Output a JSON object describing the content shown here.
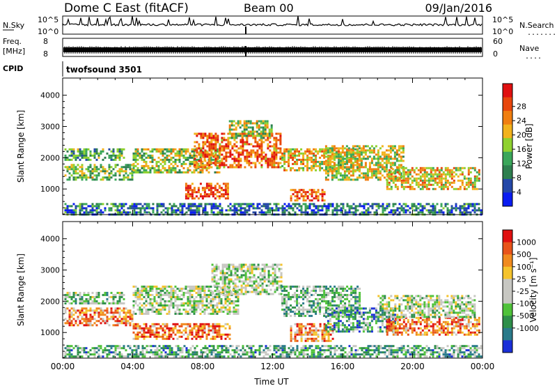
{
  "header": {
    "station": "Dome C East (fitACF)",
    "beam": "Beam 00",
    "date": "09/Jan/2016"
  },
  "status_panels": {
    "nsky_label": "N.Sky",
    "nsky_ticks": [
      "10^5",
      "10^0"
    ],
    "nsearch_label": "N.Search",
    "nsearch_dots": ".......",
    "freq_label_1": "Freq.",
    "freq_label_2": "[MHz]",
    "freq_ticks": [
      "8",
      "8"
    ],
    "nave_ticks": [
      "60",
      "0"
    ],
    "nave_label": "Nave",
    "nave_dots": "....",
    "cpid_label": "CPID",
    "cpid_value": "twofsound 3501"
  },
  "chart_data": [
    {
      "type": "heatmap",
      "name": "power",
      "ylabel": "Slant Range [km]",
      "yticks": [
        "1000",
        "2000",
        "3000",
        "4000"
      ],
      "ylim": [
        180,
        4550
      ],
      "xlim": [
        0,
        24
      ],
      "colorbar_label": "Power [dB]",
      "colorbar_ticks": [
        "4",
        "8",
        "12",
        "16",
        "20",
        "24",
        "28"
      ],
      "colorbar_colors": [
        "#0a1cf2",
        "#2448a8",
        "#2e7f4f",
        "#3aa65a",
        "#8fd12f",
        "#f2b21c",
        "#f07e10",
        "#e8460c",
        "#e01010"
      ],
      "echo_bands": [
        {
          "t0": 0.1,
          "t1": 4.0,
          "r0": 1300,
          "r1": 1800,
          "level": 0.45
        },
        {
          "t0": 0.1,
          "t1": 3.5,
          "r0": 1900,
          "r1": 2300,
          "level": 0.35
        },
        {
          "t0": 4.0,
          "t1": 9.0,
          "r0": 1500,
          "r1": 2300,
          "level": 0.5
        },
        {
          "t0": 7.0,
          "t1": 9.5,
          "r0": 700,
          "r1": 1200,
          "level": 0.85
        },
        {
          "t0": 7.5,
          "t1": 12.5,
          "r0": 1700,
          "r1": 2800,
          "level": 0.75
        },
        {
          "t0": 9.5,
          "t1": 12.0,
          "r0": 2600,
          "r1": 3200,
          "level": 0.5
        },
        {
          "t0": 13.0,
          "t1": 15.0,
          "r0": 600,
          "r1": 1000,
          "level": 0.8
        },
        {
          "t0": 12.5,
          "t1": 17.0,
          "r0": 1600,
          "r1": 2300,
          "level": 0.6
        },
        {
          "t0": 15.0,
          "t1": 19.5,
          "r0": 1300,
          "r1": 2400,
          "level": 0.55
        },
        {
          "t0": 18.5,
          "t1": 23.8,
          "r0": 1000,
          "r1": 1700,
          "level": 0.6
        },
        {
          "t0": 0.1,
          "t1": 23.9,
          "r0": 200,
          "r1": 550,
          "level": 0.25
        }
      ]
    },
    {
      "type": "heatmap",
      "name": "velocity",
      "ylabel": "Slant Range [km]",
      "yticks": [
        "1000",
        "2000",
        "3000",
        "4000"
      ],
      "ylim": [
        180,
        4550
      ],
      "xlabel": "Time UT",
      "xticks": [
        "00:00",
        "04:00",
        "08:00",
        "12:00",
        "16:00",
        "20:00",
        "00:00"
      ],
      "xlim": [
        0,
        24
      ],
      "colorbar_label": "Velocity [m s⁻¹]",
      "colorbar_ticks": [
        "1000",
        "500",
        "100",
        "25",
        "-25",
        "-100",
        "-500",
        "-1000"
      ],
      "colorbar_colors": [
        "#1a2fd8",
        "#2a7a8a",
        "#2e8f4a",
        "#4fc23a",
        "#c7c7c2",
        "#c7c7c2",
        "#f5c32c",
        "#f08a1e",
        "#e8541a",
        "#e01010"
      ],
      "echo_bands": [
        {
          "t0": 0.1,
          "t1": 4.0,
          "r0": 1200,
          "r1": 1800,
          "level": 0.75
        },
        {
          "t0": 0.1,
          "t1": 3.5,
          "r0": 1900,
          "r1": 2300,
          "level": 0.4
        },
        {
          "t0": 4.0,
          "t1": 9.5,
          "r0": 800,
          "r1": 1300,
          "level": 0.8
        },
        {
          "t0": 4.0,
          "t1": 10.0,
          "r0": 1600,
          "r1": 2500,
          "level": 0.45
        },
        {
          "t0": 8.5,
          "t1": 12.5,
          "r0": 2200,
          "r1": 3200,
          "level": 0.45
        },
        {
          "t0": 12.5,
          "t1": 17.0,
          "r0": 1500,
          "r1": 2500,
          "level": 0.35
        },
        {
          "t0": 13.0,
          "t1": 15.5,
          "r0": 700,
          "r1": 1300,
          "level": 0.75
        },
        {
          "t0": 15.0,
          "t1": 19.0,
          "r0": 1000,
          "r1": 1800,
          "level": 0.25
        },
        {
          "t0": 18.5,
          "t1": 23.8,
          "r0": 900,
          "r1": 1500,
          "level": 0.78
        },
        {
          "t0": 18.0,
          "t1": 23.5,
          "r0": 1500,
          "r1": 2200,
          "level": 0.45
        },
        {
          "t0": 0.1,
          "t1": 23.9,
          "r0": 200,
          "r1": 600,
          "level": 0.3
        }
      ]
    }
  ]
}
